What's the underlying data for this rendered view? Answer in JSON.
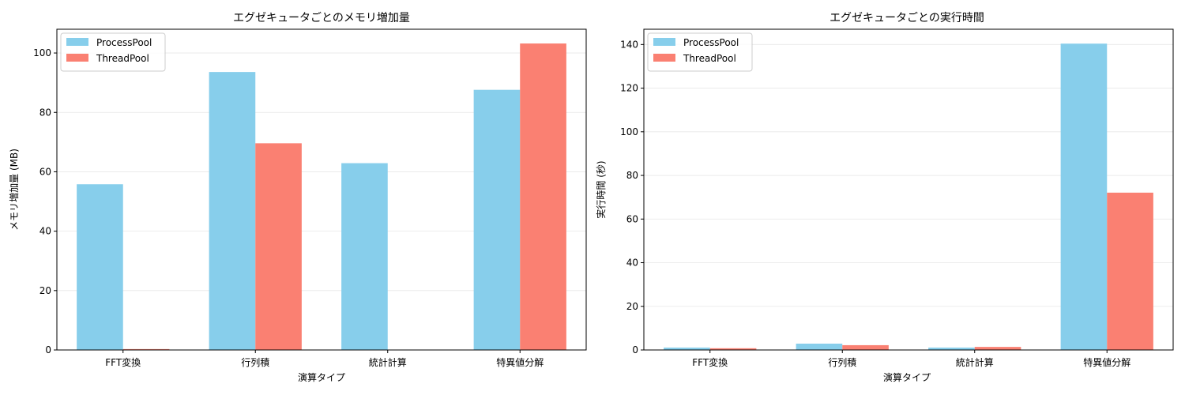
{
  "chart_data": [
    {
      "type": "bar",
      "title": "エグゼキュータごとのメモリ増加量",
      "xlabel": "演算タイプ",
      "ylabel": "メモリ増加量 (MB)",
      "categories": [
        "FFT変換",
        "行列積",
        "統計計算",
        "特異値分解"
      ],
      "series": [
        {
          "name": "ProcessPool",
          "color": "#87CEEB",
          "values": [
            55.8,
            93.6,
            62.9,
            87.6
          ]
        },
        {
          "name": "ThreadPool",
          "color": "#FA8072",
          "values": [
            0.3,
            69.6,
            0.0,
            103.2
          ]
        }
      ],
      "ylim": [
        0,
        108
      ],
      "yticks": [
        0,
        20,
        40,
        60,
        80,
        100
      ],
      "grid": "y",
      "legend": "top-left"
    },
    {
      "type": "bar",
      "title": "エグゼキュータごとの実行時間",
      "xlabel": "演算タイプ",
      "ylabel": "実行時間 (秒)",
      "categories": [
        "FFT変換",
        "行列積",
        "統計計算",
        "特異値分解"
      ],
      "series": [
        {
          "name": "ProcessPool",
          "color": "#87CEEB",
          "values": [
            1.1,
            2.9,
            1.1,
            140.4
          ]
        },
        {
          "name": "ThreadPool",
          "color": "#FA8072",
          "values": [
            0.8,
            2.2,
            1.4,
            72.1
          ]
        }
      ],
      "ylim": [
        0,
        147
      ],
      "yticks": [
        0,
        20,
        40,
        60,
        80,
        100,
        120,
        140
      ],
      "grid": "y",
      "legend": "top-left"
    }
  ]
}
